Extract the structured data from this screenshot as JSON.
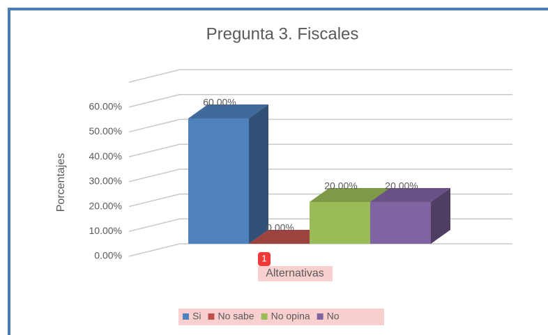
{
  "chart_data": {
    "type": "bar3d",
    "title": "Pregunta 3. Fiscales",
    "x_label": "Alternativas",
    "y_label": "Porcentajes",
    "badge": "1",
    "categories": [
      null
    ],
    "series": [
      {
        "name": "Si",
        "color": "#4f81bd",
        "values": [
          60
        ],
        "value_labels": [
          "60.00%"
        ]
      },
      {
        "name": "No sabe",
        "color": "#c0504d",
        "values": [
          0
        ],
        "value_labels": [
          "0.00%"
        ]
      },
      {
        "name": "No opina",
        "color": "#9bbb59",
        "values": [
          20
        ],
        "value_labels": [
          "20.00%"
        ]
      },
      {
        "name": "No",
        "color": "#8064a2",
        "values": [
          20
        ],
        "value_labels": [
          "20.00%"
        ]
      }
    ],
    "ylim": [
      0,
      70
    ],
    "yticks": [
      {
        "value": 0,
        "label": "0.00%"
      },
      {
        "value": 10,
        "label": "10.00%"
      },
      {
        "value": 20,
        "label": "20.00%"
      },
      {
        "value": 30,
        "label": "30.00%"
      },
      {
        "value": 40,
        "label": "40.00%"
      },
      {
        "value": 50,
        "label": "50.00%"
      },
      {
        "value": 60,
        "label": "60.00%"
      }
    ],
    "grid": true,
    "legend": "bottom"
  }
}
